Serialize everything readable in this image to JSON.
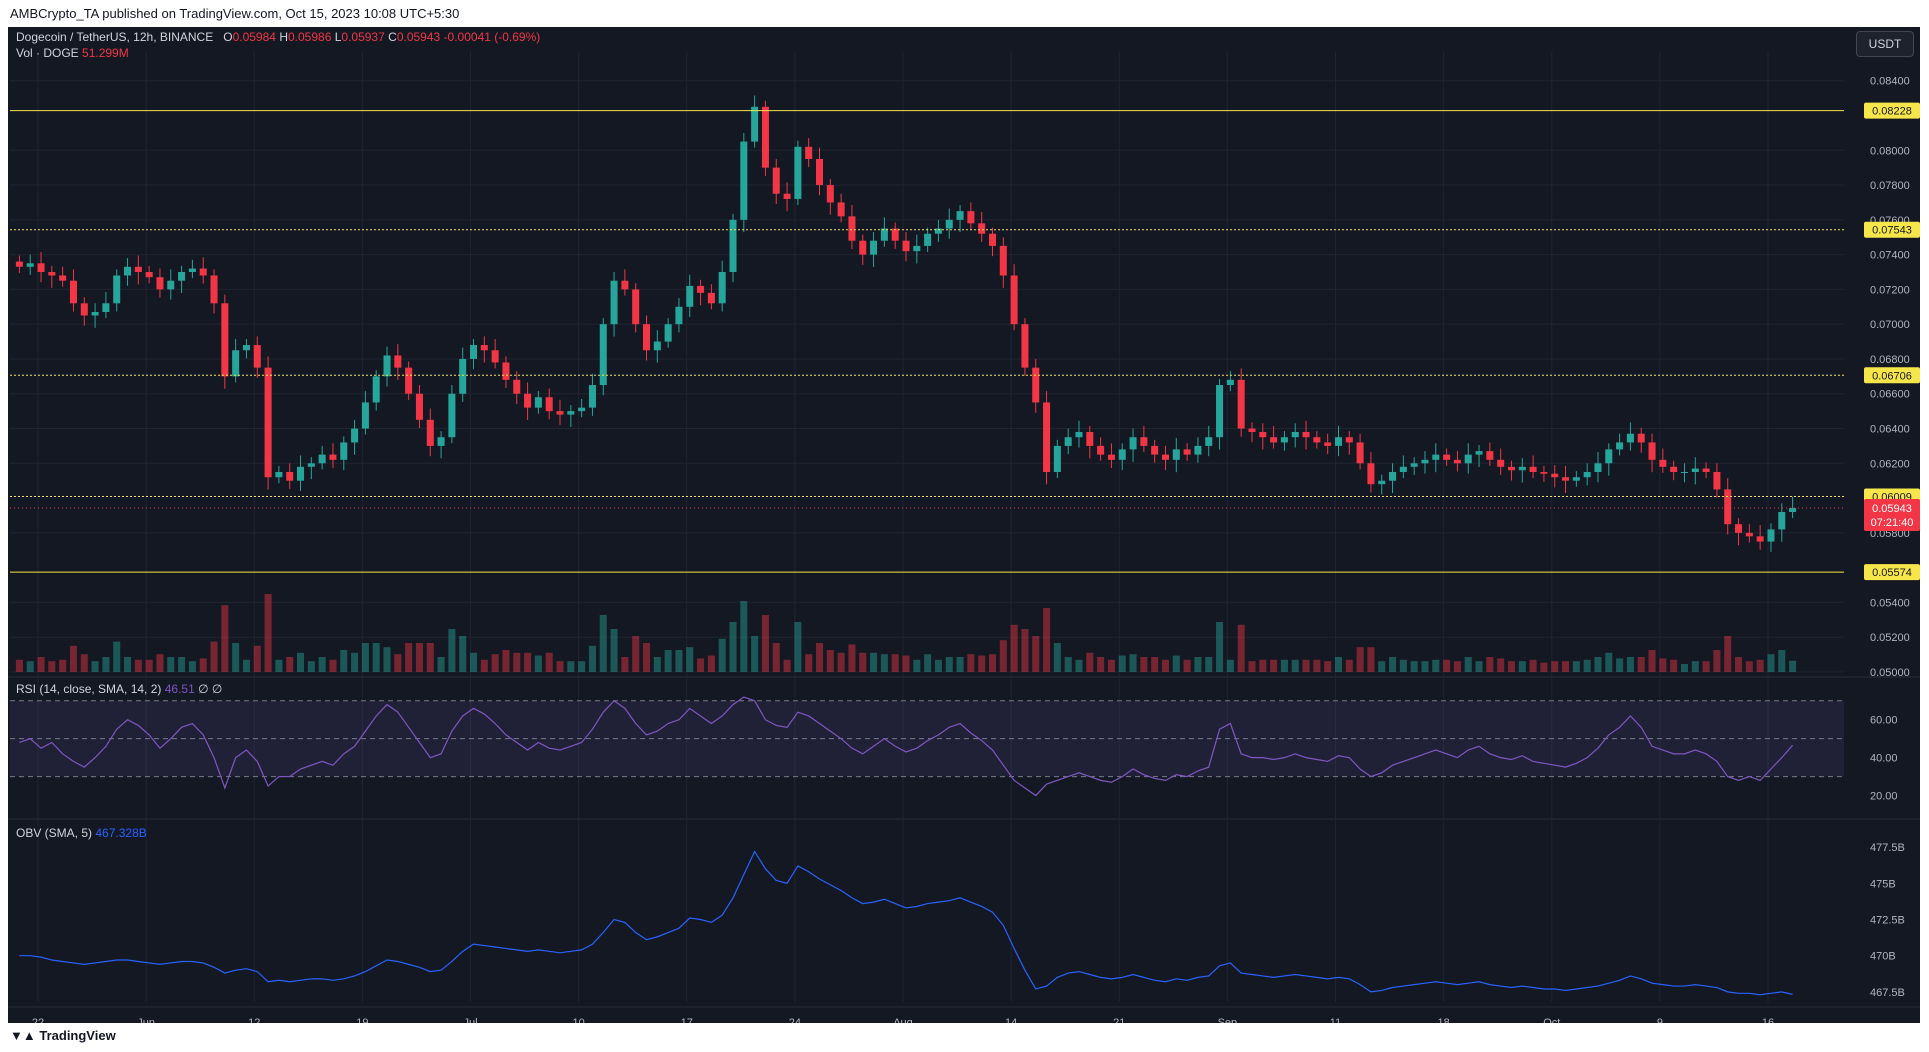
{
  "header": {
    "published": "AMBCrypto_TA published on TradingView.com, Oct 15, 2023 10:08 UTC+5:30",
    "symbol": "Dogecoin / TetherUS, 12h, BINANCE",
    "o_label": "O",
    "o_value": "0.05984",
    "h_label": "H",
    "h_value": "0.05986",
    "l_label": "L",
    "l_value": "0.05937",
    "c_label": "C",
    "c_value": "0.05943",
    "change": "-0.00041 (-0.69%)",
    "vol_label": "Vol · DOGE",
    "vol_value": "51.299M",
    "currency": "USDT"
  },
  "footer": {
    "brand": "TradingView"
  },
  "colors": {
    "background": "#141823",
    "up": "#26a69a",
    "down": "#f23645",
    "level": "#f7e64a",
    "rsi": "#7e57c2",
    "obv": "#2962ff",
    "grid": "#1f2431"
  },
  "chart_data": [
    {
      "type": "candlestick",
      "title": "Dogecoin / TetherUS, 12h, BINANCE",
      "x_ticks": [
        "22",
        "Jun",
        "12",
        "19",
        "Jul",
        "10",
        "17",
        "24",
        "Aug",
        "14",
        "21",
        "Sep",
        "11",
        "18",
        "Oct",
        "9",
        "16"
      ],
      "y_ticks": [
        "0.08400",
        "0.08000",
        "0.07800",
        "0.07600",
        "0.07400",
        "0.07200",
        "0.07000",
        "0.06800",
        "0.06600",
        "0.06400",
        "0.06200",
        "0.05800",
        "0.05400",
        "0.05200",
        "0.05000"
      ],
      "ylim": [
        0.05,
        0.0845
      ],
      "horizontal_levels": [
        {
          "value": 0.08228,
          "label": "0.08228",
          "style": "solid"
        },
        {
          "value": 0.07543,
          "label": "0.07543",
          "style": "dotted"
        },
        {
          "value": 0.06706,
          "label": "0.06706",
          "style": "dotted"
        },
        {
          "value": 0.06009,
          "label": "0.06009",
          "style": "dotted"
        },
        {
          "value": 0.05574,
          "label": "0.05574",
          "style": "solid"
        }
      ],
      "last_price": {
        "value": 0.05943,
        "label": "0.05943",
        "countdown": "07:21:40"
      },
      "close_path": [
        0.0733,
        0.0735,
        0.073,
        0.0728,
        0.0725,
        0.0712,
        0.0705,
        0.0707,
        0.0712,
        0.0728,
        0.0733,
        0.073,
        0.0727,
        0.072,
        0.0725,
        0.073,
        0.0732,
        0.0728,
        0.0712,
        0.067,
        0.0685,
        0.0688,
        0.0675,
        0.0612,
        0.0615,
        0.061,
        0.0618,
        0.062,
        0.0625,
        0.0622,
        0.0632,
        0.064,
        0.0655,
        0.067,
        0.0682,
        0.0675,
        0.066,
        0.0645,
        0.063,
        0.0635,
        0.066,
        0.068,
        0.0688,
        0.0685,
        0.0678,
        0.0668,
        0.066,
        0.0652,
        0.0658,
        0.065,
        0.0648,
        0.065,
        0.0652,
        0.0665,
        0.07,
        0.0725,
        0.072,
        0.07,
        0.0685,
        0.069,
        0.07,
        0.071,
        0.0722,
        0.0718,
        0.0712,
        0.073,
        0.076,
        0.0805,
        0.0825,
        0.079,
        0.0775,
        0.0772,
        0.0802,
        0.0795,
        0.078,
        0.077,
        0.0762,
        0.0748,
        0.074,
        0.0748,
        0.0755,
        0.0748,
        0.0742,
        0.0745,
        0.0752,
        0.0755,
        0.076,
        0.0765,
        0.0758,
        0.0752,
        0.0745,
        0.0728,
        0.07,
        0.0675,
        0.0655,
        0.0615,
        0.063,
        0.0635,
        0.0638,
        0.063,
        0.0625,
        0.0622,
        0.0628,
        0.0635,
        0.063,
        0.0625,
        0.0622,
        0.0628,
        0.0625,
        0.063,
        0.0635,
        0.0665,
        0.0668,
        0.064,
        0.0638,
        0.0635,
        0.0632,
        0.0635,
        0.0638,
        0.0635,
        0.0632,
        0.063,
        0.0635,
        0.0632,
        0.062,
        0.0608,
        0.061,
        0.0615,
        0.0618,
        0.062,
        0.0622,
        0.0625,
        0.0622,
        0.062,
        0.0625,
        0.0627,
        0.0622,
        0.0618,
        0.0616,
        0.0618,
        0.0615,
        0.0614,
        0.0612,
        0.061,
        0.0612,
        0.0615,
        0.062,
        0.0628,
        0.0632,
        0.0637,
        0.0632,
        0.0622,
        0.0618,
        0.0615,
        0.0615,
        0.0617,
        0.0615,
        0.0605,
        0.0585,
        0.058,
        0.0578,
        0.0575,
        0.0582,
        0.0592,
        0.05943
      ],
      "volume_axis_note": "volume bars overlaid at bottom of price pane"
    },
    {
      "type": "line",
      "title": "RSI (14, close, SMA, 14, 2)",
      "header_label": "RSI (14, close, SMA, 14, 2)",
      "header_value": "46.51",
      "header_extra": "∅ ∅",
      "y_ticks": [
        "60.00",
        "40.00",
        "20.00"
      ],
      "ylim": [
        15,
        72
      ],
      "bands": [
        70,
        50,
        30
      ],
      "values": [
        48,
        50,
        45,
        48,
        42,
        38,
        35,
        40,
        46,
        55,
        60,
        57,
        52,
        45,
        50,
        56,
        58,
        52,
        40,
        24,
        40,
        44,
        38,
        25,
        30,
        30,
        34,
        36,
        38,
        36,
        42,
        46,
        54,
        62,
        68,
        64,
        56,
        48,
        40,
        42,
        54,
        62,
        66,
        63,
        58,
        52,
        48,
        44,
        48,
        45,
        44,
        46,
        48,
        55,
        64,
        70,
        66,
        58,
        52,
        54,
        58,
        60,
        66,
        62,
        58,
        62,
        68,
        72,
        70,
        60,
        57,
        56,
        64,
        62,
        58,
        54,
        50,
        45,
        42,
        46,
        50,
        46,
        43,
        45,
        49,
        52,
        56,
        58,
        53,
        49,
        44,
        36,
        28,
        24,
        20,
        26,
        28,
        30,
        32,
        30,
        28,
        27,
        30,
        34,
        31,
        29,
        28,
        31,
        30,
        33,
        35,
        55,
        58,
        42,
        40,
        40,
        39,
        40,
        42,
        40,
        39,
        38,
        41,
        40,
        34,
        30,
        32,
        36,
        38,
        40,
        42,
        44,
        42,
        40,
        44,
        46,
        42,
        40,
        39,
        41,
        38,
        37,
        36,
        35,
        37,
        40,
        45,
        52,
        56,
        62,
        56,
        46,
        44,
        42,
        42,
        44,
        42,
        38,
        30,
        28,
        30,
        28,
        34,
        40,
        46.51
      ]
    },
    {
      "type": "line",
      "title": "OBV (SMA, 5)",
      "header_label": "OBV (SMA, 5)",
      "header_value": "467.328B",
      "y_ticks": [
        "477.5B",
        "475B",
        "472.5B",
        "470B",
        "467.5B"
      ],
      "ylim": [
        466.8,
        478.2
      ],
      "values": [
        470.0,
        470.0,
        469.9,
        469.7,
        469.6,
        469.5,
        469.4,
        469.5,
        469.6,
        469.7,
        469.7,
        469.6,
        469.5,
        469.4,
        469.5,
        469.6,
        469.6,
        469.5,
        469.2,
        468.8,
        469.0,
        469.1,
        468.9,
        468.2,
        468.3,
        468.2,
        468.3,
        468.4,
        468.4,
        468.3,
        468.4,
        468.6,
        468.9,
        469.3,
        469.7,
        469.6,
        469.4,
        469.2,
        468.9,
        469.0,
        469.6,
        470.3,
        470.8,
        470.7,
        470.6,
        470.5,
        470.4,
        470.3,
        470.4,
        470.3,
        470.2,
        470.3,
        470.4,
        470.8,
        471.6,
        472.5,
        472.3,
        471.6,
        471.1,
        471.3,
        471.6,
        471.9,
        472.6,
        472.5,
        472.3,
        472.8,
        474.0,
        475.6,
        477.2,
        476.0,
        475.2,
        475.0,
        476.2,
        475.8,
        475.3,
        474.9,
        474.5,
        474.0,
        473.6,
        473.7,
        473.9,
        473.6,
        473.3,
        473.4,
        473.6,
        473.7,
        473.8,
        474.0,
        473.7,
        473.4,
        473.0,
        472.1,
        470.5,
        469.0,
        467.7,
        467.9,
        468.5,
        468.8,
        468.9,
        468.7,
        468.5,
        468.4,
        468.5,
        468.7,
        468.5,
        468.3,
        468.2,
        468.4,
        468.3,
        468.5,
        468.6,
        469.3,
        469.5,
        468.8,
        468.7,
        468.6,
        468.5,
        468.6,
        468.7,
        468.6,
        468.5,
        468.4,
        468.5,
        468.4,
        468.0,
        467.5,
        467.6,
        467.8,
        467.9,
        468.0,
        468.1,
        468.2,
        468.1,
        468.0,
        468.1,
        468.2,
        468.0,
        467.9,
        467.8,
        467.9,
        467.8,
        467.7,
        467.7,
        467.6,
        467.7,
        467.8,
        467.9,
        468.1,
        468.3,
        468.6,
        468.4,
        468.1,
        468.0,
        467.9,
        467.9,
        468.0,
        467.9,
        467.8,
        467.5,
        467.4,
        467.4,
        467.3,
        467.4,
        467.5,
        467.328
      ]
    }
  ]
}
